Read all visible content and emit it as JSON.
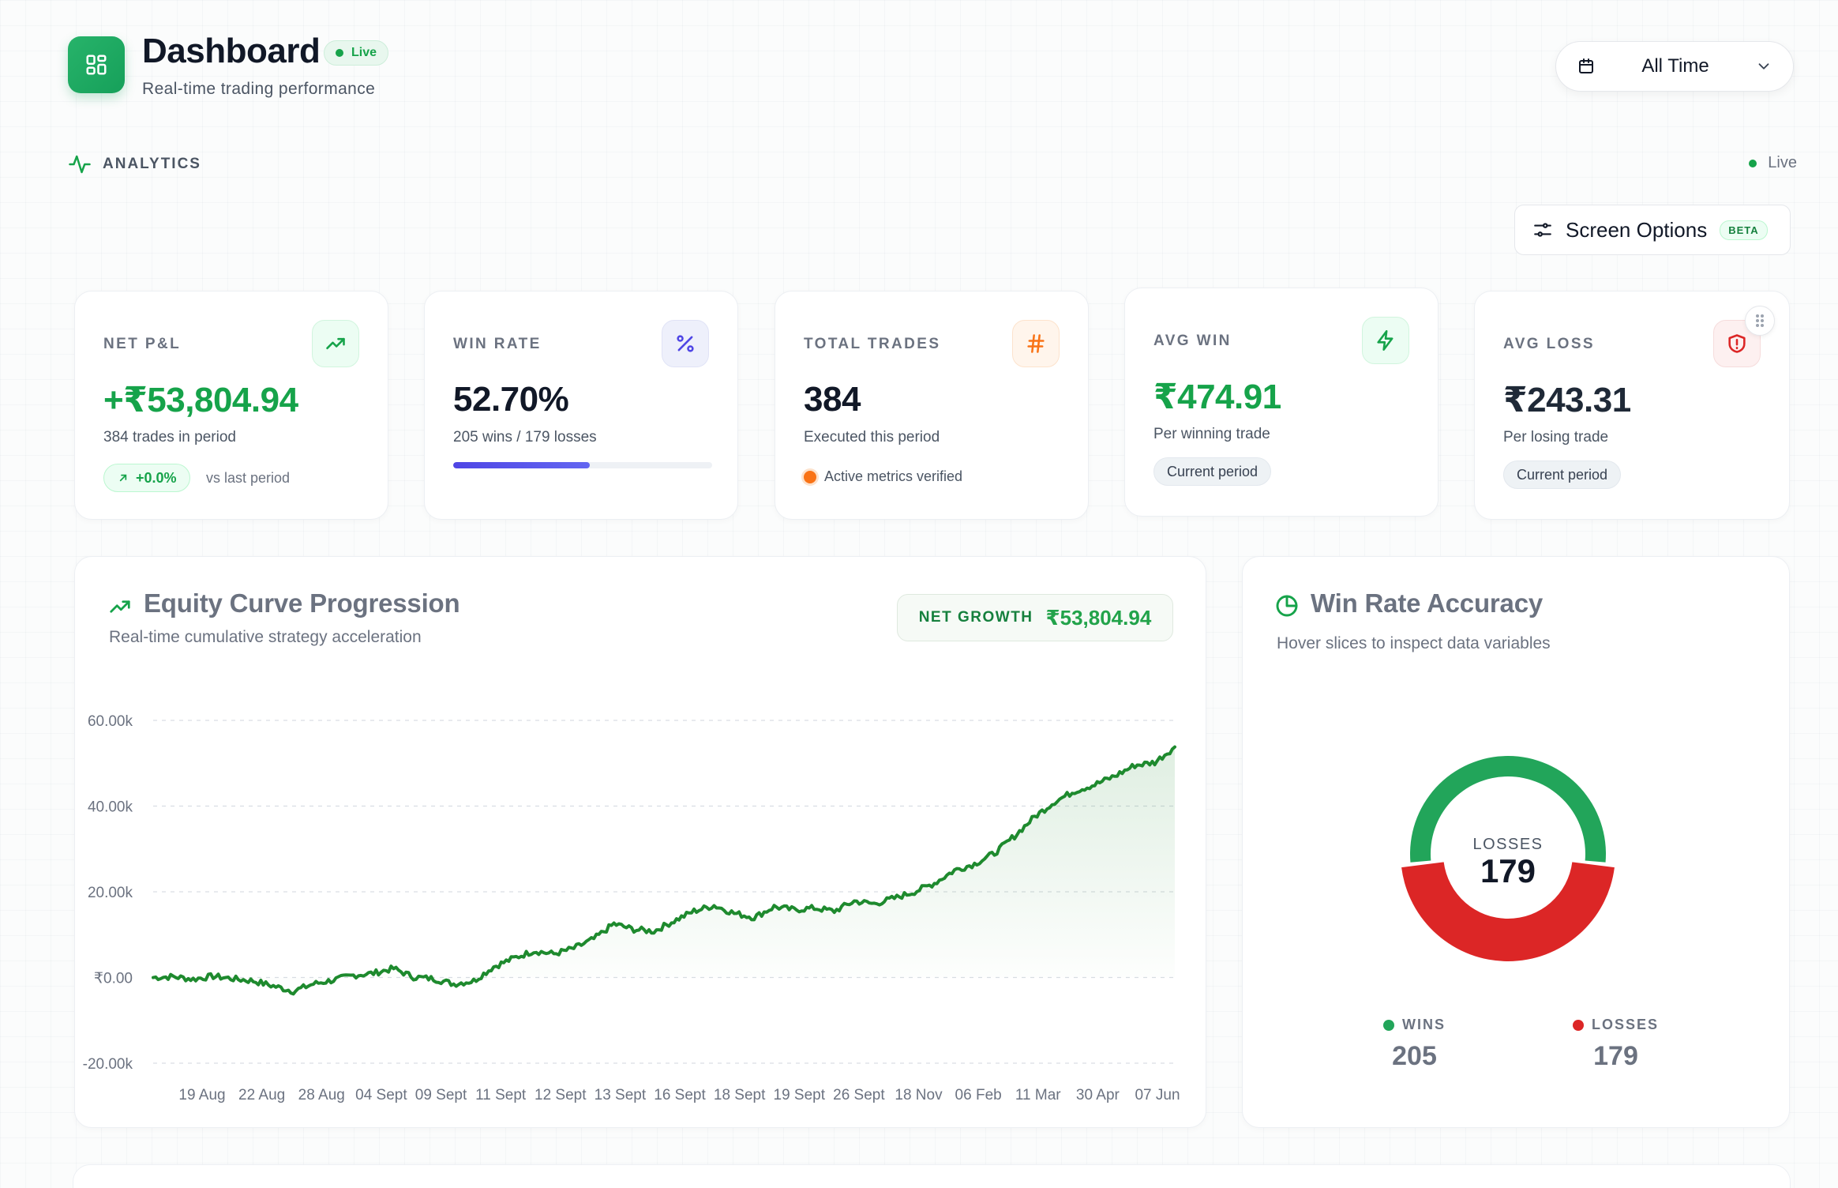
{
  "header": {
    "title": "Dashboard",
    "live_badge": "Live",
    "subtitle": "Real-time trading performance",
    "time_range": "All Time",
    "section_label": "ANALYTICS",
    "live_status": "Live",
    "screen_options": "Screen Options",
    "beta_badge": "BETA"
  },
  "kpis": {
    "net_pnl": {
      "label": "NET P&L",
      "value": "+₹53,804.94",
      "sub": "384 trades in period",
      "change": "+0.0%",
      "change_note": "vs last period",
      "icon": "trending-up-icon"
    },
    "win_rate": {
      "label": "WIN RATE",
      "value": "52.70%",
      "sub": "205 wins / 179 losses",
      "progress": 0.527,
      "icon": "percent-icon"
    },
    "total_trades": {
      "label": "TOTAL TRADES",
      "value": "384",
      "sub": "Executed this period",
      "status": "Active metrics verified",
      "icon": "hash-icon"
    },
    "avg_win": {
      "label": "AVG WIN",
      "value": "₹474.91",
      "sub": "Per winning trade",
      "chip": "Current period",
      "icon": "zap-icon"
    },
    "avg_loss": {
      "label": "AVG LOSS",
      "value": "₹243.31",
      "sub": "Per losing trade",
      "chip": "Current period",
      "icon": "shield-alert-icon"
    }
  },
  "equity": {
    "title": "Equity Curve Progression",
    "subtitle": "Real-time cumulative strategy acceleration",
    "net_growth_label": "NET GROWTH",
    "net_growth_value": "₹53,804.94"
  },
  "winrate_panel": {
    "title": "Win Rate Accuracy",
    "subtitle": "Hover slices to inspect data variables",
    "center_label": "LOSSES",
    "center_value": "179",
    "legend": [
      {
        "label": "WINS",
        "value": "205",
        "color": "#22a55a"
      },
      {
        "label": "LOSSES",
        "value": "179",
        "color": "#dc2626"
      }
    ]
  },
  "chart_data": [
    {
      "type": "line",
      "title": "Equity Curve Progression",
      "y_ticks": [
        "60.00k",
        "40.00k",
        "20.00k",
        "₹0.00",
        "-20.00k"
      ],
      "y_tick_values": [
        60000,
        40000,
        20000,
        0,
        -20000
      ],
      "ylim": [
        -20000,
        60000
      ],
      "x_ticks": [
        "19 Aug",
        "22 Aug",
        "28 Aug",
        "04 Sept",
        "09 Sept",
        "11 Sept",
        "12 Sept",
        "13 Sept",
        "16 Sept",
        "18 Sept",
        "19 Sept",
        "26 Sept",
        "18 Nov",
        "06 Feb",
        "11 Mar",
        "30 Apr",
        "07 Jun"
      ],
      "color": "#1e8a2e",
      "grid": true,
      "series": [
        {
          "values": [
            0,
            200,
            -400,
            300,
            -300,
            -800,
            -2000,
            -3200,
            -1500,
            -600,
            500,
            1000,
            2100,
            100,
            -300,
            -1500,
            -800,
            2500,
            4500,
            6200,
            5500,
            6800,
            9000,
            12500,
            11200,
            10800,
            13200,
            15500,
            16800,
            15000,
            14000,
            16500,
            15800,
            16200,
            15500,
            17800,
            17200,
            18500,
            20000,
            22000,
            25000,
            26500,
            29000,
            33000,
            37500,
            41000,
            43500,
            45000,
            47000,
            49500,
            50200,
            53804.94
          ]
        }
      ]
    },
    {
      "type": "pie",
      "title": "Win Rate Accuracy",
      "categories": [
        "WINS",
        "LOSSES"
      ],
      "values": [
        205,
        179
      ],
      "colors": [
        "#22a55a",
        "#dc2626"
      ]
    }
  ]
}
